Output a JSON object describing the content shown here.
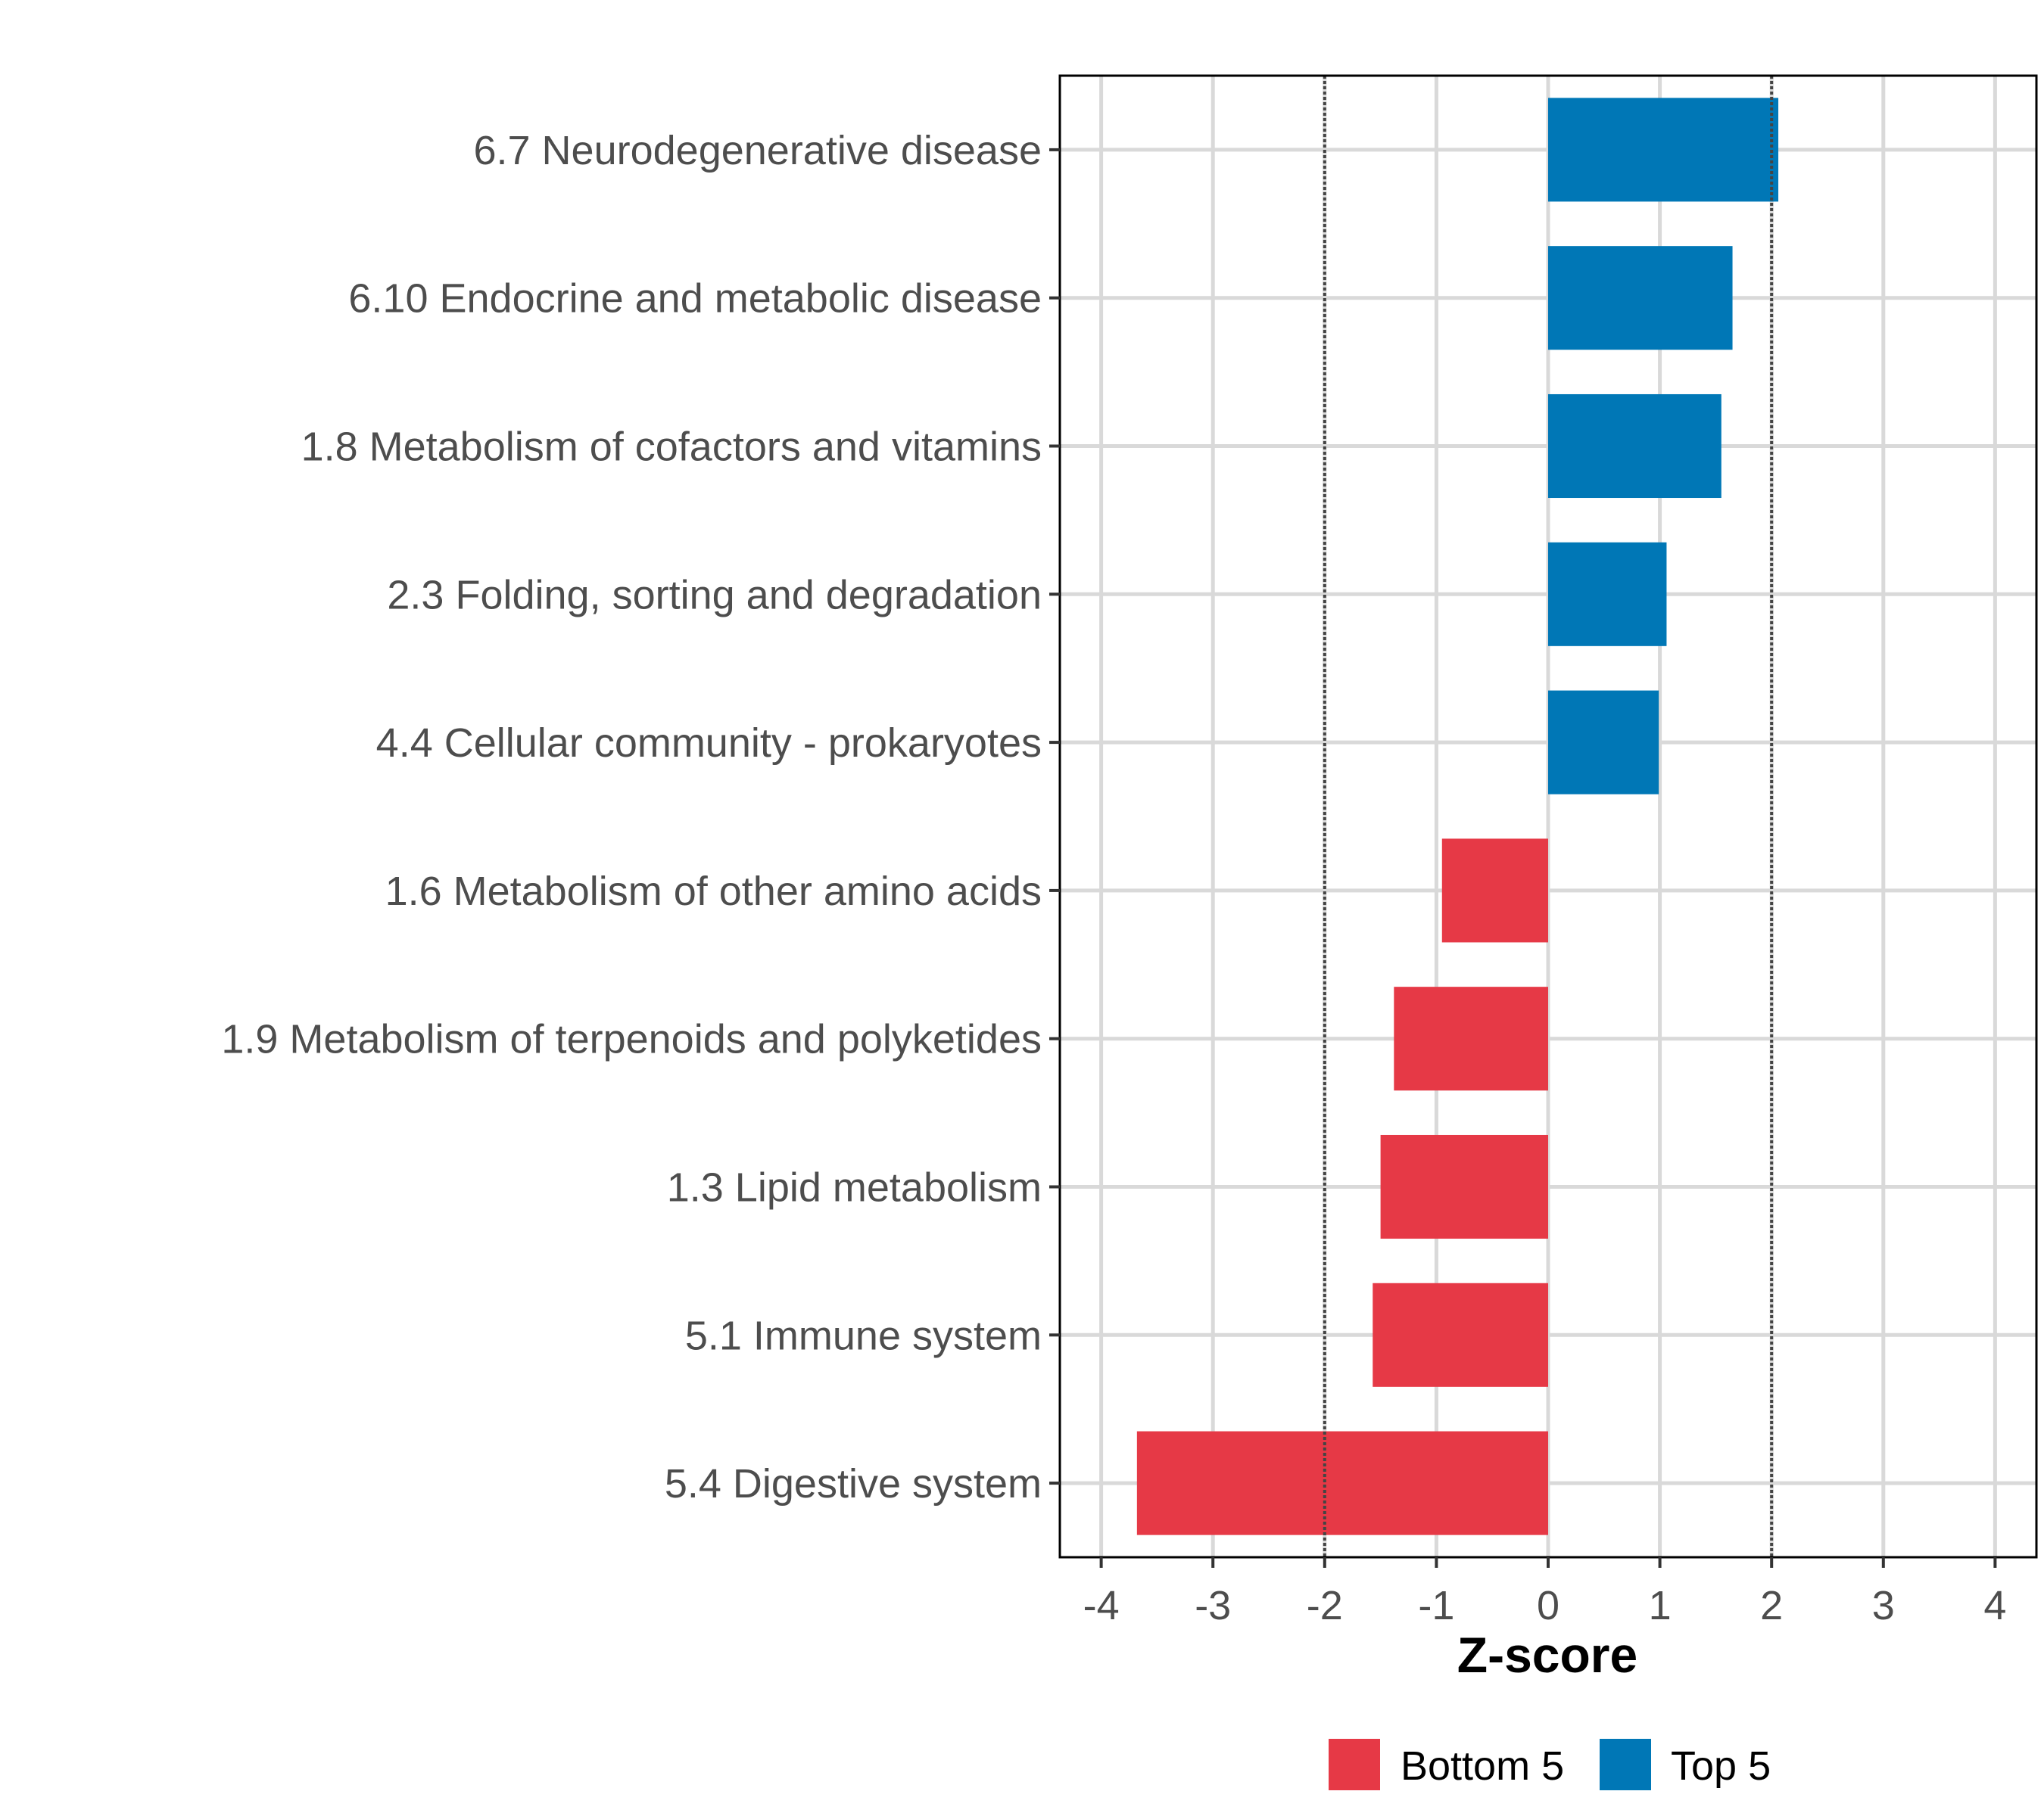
{
  "chart_data": {
    "type": "bar",
    "orientation": "horizontal",
    "title": "",
    "xlabel": "Z-score",
    "ylabel": "",
    "xlim": [
      -4.37,
      4.37
    ],
    "xticks": [
      -4,
      -3,
      -2,
      -1,
      0,
      1,
      2,
      3,
      4
    ],
    "xtick_labels": [
      "-4",
      "-3",
      "-2",
      "-1",
      "0",
      "1",
      "2",
      "3",
      "4"
    ],
    "grid": true,
    "reference_lines": [
      -2,
      2
    ],
    "categories": [
      "6.7 Neurodegenerative disease",
      "6.10 Endocrine and metabolic disease",
      "1.8 Metabolism of cofactors and vitamins",
      "2.3 Folding, sorting and degradation",
      "4.4 Cellular community - prokaryotes",
      "1.6 Metabolism of other amino acids",
      "1.9 Metabolism of terpenoids and polyketides",
      "1.3 Lipid metabolism",
      "5.1 Immune system",
      "5.4 Digestive system"
    ],
    "values": [
      2.06,
      1.65,
      1.55,
      1.06,
      0.99,
      -0.95,
      -1.38,
      -1.5,
      -1.57,
      -3.68
    ],
    "groups": [
      "Top 5",
      "Top 5",
      "Top 5",
      "Top 5",
      "Top 5",
      "Bottom 5",
      "Bottom 5",
      "Bottom 5",
      "Bottom 5",
      "Bottom 5"
    ],
    "legend": {
      "position": "bottom",
      "entries": [
        {
          "label": "Bottom 5",
          "color": "#E63946"
        },
        {
          "label": "Top 5",
          "color": "#0077B6"
        }
      ]
    }
  }
}
